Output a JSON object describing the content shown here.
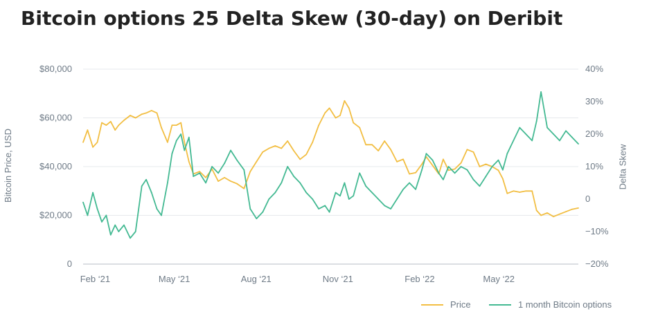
{
  "title": "Bitcoin options 25 Delta Skew (30-day) on Deribit",
  "colors": {
    "price": "#f2be42",
    "skew": "#43b992",
    "grid": "#e6e9ec",
    "axis": "#b7bec6",
    "text": "#6e7a86"
  },
  "chart_data": {
    "type": "line",
    "title": "Bitcoin options 25 Delta Skew (30-day) on Deribit",
    "x_ticks": [
      "Feb ‘21",
      "May ‘21",
      "Aug ‘21",
      "Nov ‘21",
      "Feb ‘22",
      "May ‘22"
    ],
    "x_range": [
      "2021-01-20",
      "2022-07-31"
    ],
    "y_left": {
      "label": "Bitcoin Price, USD",
      "range": [
        0,
        80000
      ],
      "ticks": [
        "0",
        "$20,000",
        "$40,000",
        "$60,000",
        "$80,000"
      ]
    },
    "y_right": {
      "label": "Delta Skew",
      "range": [
        -20,
        40
      ],
      "ticks": [
        "−20%",
        "−10%",
        "0",
        "10%",
        "20%",
        "30%",
        "40%"
      ]
    },
    "legend_position": "bottom-right",
    "series": [
      {
        "name": "Price",
        "axis": "left",
        "color": "#f2be42",
        "points": [
          [
            "2021-01-20",
            50000
          ],
          [
            "2021-01-25",
            55000
          ],
          [
            "2021-01-31",
            48000
          ],
          [
            "2021-02-05",
            50000
          ],
          [
            "2021-02-10",
            58000
          ],
          [
            "2021-02-15",
            57000
          ],
          [
            "2021-02-20",
            58500
          ],
          [
            "2021-02-25",
            55000
          ],
          [
            "2021-03-01",
            57000
          ],
          [
            "2021-03-07",
            59000
          ],
          [
            "2021-03-14",
            61000
          ],
          [
            "2021-03-20",
            60000
          ],
          [
            "2021-03-27",
            61500
          ],
          [
            "2021-04-01",
            62000
          ],
          [
            "2021-04-07",
            63000
          ],
          [
            "2021-04-13",
            62000
          ],
          [
            "2021-04-18",
            56000
          ],
          [
            "2021-04-25",
            50000
          ],
          [
            "2021-04-30",
            57000
          ],
          [
            "2021-05-05",
            57000
          ],
          [
            "2021-05-10",
            58000
          ],
          [
            "2021-05-14",
            50000
          ],
          [
            "2021-05-19",
            42000
          ],
          [
            "2021-05-24",
            37000
          ],
          [
            "2021-05-31",
            38000
          ],
          [
            "2021-06-07",
            35500
          ],
          [
            "2021-06-14",
            39000
          ],
          [
            "2021-06-21",
            34000
          ],
          [
            "2021-06-28",
            35500
          ],
          [
            "2021-07-05",
            34000
          ],
          [
            "2021-07-12",
            33000
          ],
          [
            "2021-07-20",
            31000
          ],
          [
            "2021-07-27",
            38000
          ],
          [
            "2021-08-03",
            42000
          ],
          [
            "2021-08-10",
            46000
          ],
          [
            "2021-08-17",
            47500
          ],
          [
            "2021-08-24",
            48500
          ],
          [
            "2021-08-31",
            47500
          ],
          [
            "2021-09-07",
            50500
          ],
          [
            "2021-09-14",
            46500
          ],
          [
            "2021-09-21",
            43000
          ],
          [
            "2021-09-28",
            45000
          ],
          [
            "2021-10-05",
            50000
          ],
          [
            "2021-10-12",
            57000
          ],
          [
            "2021-10-19",
            62000
          ],
          [
            "2021-10-24",
            64000
          ],
          [
            "2021-10-31",
            60000
          ],
          [
            "2021-11-05",
            61000
          ],
          [
            "2021-11-10",
            67000
          ],
          [
            "2021-11-15",
            64000
          ],
          [
            "2021-11-20",
            58000
          ],
          [
            "2021-11-27",
            56000
          ],
          [
            "2021-12-04",
            49000
          ],
          [
            "2021-12-11",
            49000
          ],
          [
            "2021-12-18",
            46500
          ],
          [
            "2021-12-25",
            50500
          ],
          [
            "2022-01-01",
            47000
          ],
          [
            "2022-01-08",
            42000
          ],
          [
            "2022-01-15",
            43000
          ],
          [
            "2022-01-22",
            37000
          ],
          [
            "2022-01-29",
            37500
          ],
          [
            "2022-02-05",
            41000
          ],
          [
            "2022-02-10",
            44000
          ],
          [
            "2022-02-17",
            40500
          ],
          [
            "2022-02-24",
            37000
          ],
          [
            "2022-03-01",
            43000
          ],
          [
            "2022-03-07",
            38500
          ],
          [
            "2022-03-14",
            39000
          ],
          [
            "2022-03-21",
            41500
          ],
          [
            "2022-03-28",
            47000
          ],
          [
            "2022-04-04",
            46000
          ],
          [
            "2022-04-11",
            40000
          ],
          [
            "2022-04-18",
            41000
          ],
          [
            "2022-04-25",
            40000
          ],
          [
            "2022-05-02",
            38500
          ],
          [
            "2022-05-07",
            35000
          ],
          [
            "2022-05-12",
            29000
          ],
          [
            "2022-05-19",
            30000
          ],
          [
            "2022-05-26",
            29500
          ],
          [
            "2022-06-02",
            30000
          ],
          [
            "2022-06-09",
            30000
          ],
          [
            "2022-06-14",
            22000
          ],
          [
            "2022-06-19",
            20000
          ],
          [
            "2022-06-26",
            21000
          ],
          [
            "2022-07-03",
            19500
          ],
          [
            "2022-07-10",
            20500
          ],
          [
            "2022-07-17",
            21500
          ],
          [
            "2022-07-24",
            22500
          ],
          [
            "2022-07-31",
            23000
          ]
        ]
      },
      {
        "name": "1 month Bitcoin options",
        "axis": "right",
        "color": "#43b992",
        "points": [
          [
            "2021-01-20",
            -1
          ],
          [
            "2021-01-25",
            -5
          ],
          [
            "2021-01-31",
            2
          ],
          [
            "2021-02-05",
            -3
          ],
          [
            "2021-02-10",
            -7
          ],
          [
            "2021-02-15",
            -5
          ],
          [
            "2021-02-20",
            -11
          ],
          [
            "2021-02-25",
            -8
          ],
          [
            "2021-03-01",
            -10
          ],
          [
            "2021-03-07",
            -8
          ],
          [
            "2021-03-14",
            -12
          ],
          [
            "2021-03-20",
            -10
          ],
          [
            "2021-03-27",
            4
          ],
          [
            "2021-04-01",
            6
          ],
          [
            "2021-04-07",
            2
          ],
          [
            "2021-04-13",
            -3
          ],
          [
            "2021-04-18",
            -5
          ],
          [
            "2021-04-25",
            5
          ],
          [
            "2021-04-30",
            14
          ],
          [
            "2021-05-05",
            18
          ],
          [
            "2021-05-10",
            20
          ],
          [
            "2021-05-14",
            15
          ],
          [
            "2021-05-19",
            19
          ],
          [
            "2021-05-24",
            7
          ],
          [
            "2021-05-31",
            8
          ],
          [
            "2021-06-07",
            5
          ],
          [
            "2021-06-14",
            10
          ],
          [
            "2021-06-21",
            8
          ],
          [
            "2021-06-28",
            11
          ],
          [
            "2021-07-05",
            15
          ],
          [
            "2021-07-12",
            12
          ],
          [
            "2021-07-20",
            9
          ],
          [
            "2021-07-27",
            -3
          ],
          [
            "2021-08-03",
            -6
          ],
          [
            "2021-08-10",
            -4
          ],
          [
            "2021-08-17",
            0
          ],
          [
            "2021-08-24",
            2
          ],
          [
            "2021-08-31",
            5
          ],
          [
            "2021-09-07",
            10
          ],
          [
            "2021-09-14",
            7
          ],
          [
            "2021-09-21",
            5
          ],
          [
            "2021-09-28",
            2
          ],
          [
            "2021-10-05",
            0
          ],
          [
            "2021-10-12",
            -3
          ],
          [
            "2021-10-19",
            -2
          ],
          [
            "2021-10-24",
            -4
          ],
          [
            "2021-10-31",
            2
          ],
          [
            "2021-11-05",
            1
          ],
          [
            "2021-11-10",
            5
          ],
          [
            "2021-11-15",
            0
          ],
          [
            "2021-11-20",
            1
          ],
          [
            "2021-11-27",
            8
          ],
          [
            "2021-12-04",
            4
          ],
          [
            "2021-12-11",
            2
          ],
          [
            "2021-12-18",
            0
          ],
          [
            "2021-12-25",
            -2
          ],
          [
            "2022-01-01",
            -3
          ],
          [
            "2022-01-08",
            0
          ],
          [
            "2022-01-15",
            3
          ],
          [
            "2022-01-22",
            5
          ],
          [
            "2022-01-29",
            3
          ],
          [
            "2022-02-05",
            9
          ],
          [
            "2022-02-10",
            14
          ],
          [
            "2022-02-17",
            12
          ],
          [
            "2022-02-24",
            8
          ],
          [
            "2022-03-01",
            6
          ],
          [
            "2022-03-07",
            10
          ],
          [
            "2022-03-14",
            8
          ],
          [
            "2022-03-21",
            10
          ],
          [
            "2022-03-28",
            9
          ],
          [
            "2022-04-04",
            6
          ],
          [
            "2022-04-11",
            4
          ],
          [
            "2022-04-18",
            7
          ],
          [
            "2022-04-25",
            10
          ],
          [
            "2022-05-02",
            12
          ],
          [
            "2022-05-07",
            9
          ],
          [
            "2022-05-12",
            14
          ],
          [
            "2022-05-19",
            18
          ],
          [
            "2022-05-26",
            22
          ],
          [
            "2022-06-02",
            20
          ],
          [
            "2022-06-09",
            18
          ],
          [
            "2022-06-14",
            24
          ],
          [
            "2022-06-19",
            33
          ],
          [
            "2022-06-26",
            22
          ],
          [
            "2022-07-03",
            20
          ],
          [
            "2022-07-10",
            18
          ],
          [
            "2022-07-17",
            21
          ],
          [
            "2022-07-24",
            19
          ],
          [
            "2022-07-31",
            17
          ]
        ]
      }
    ]
  }
}
